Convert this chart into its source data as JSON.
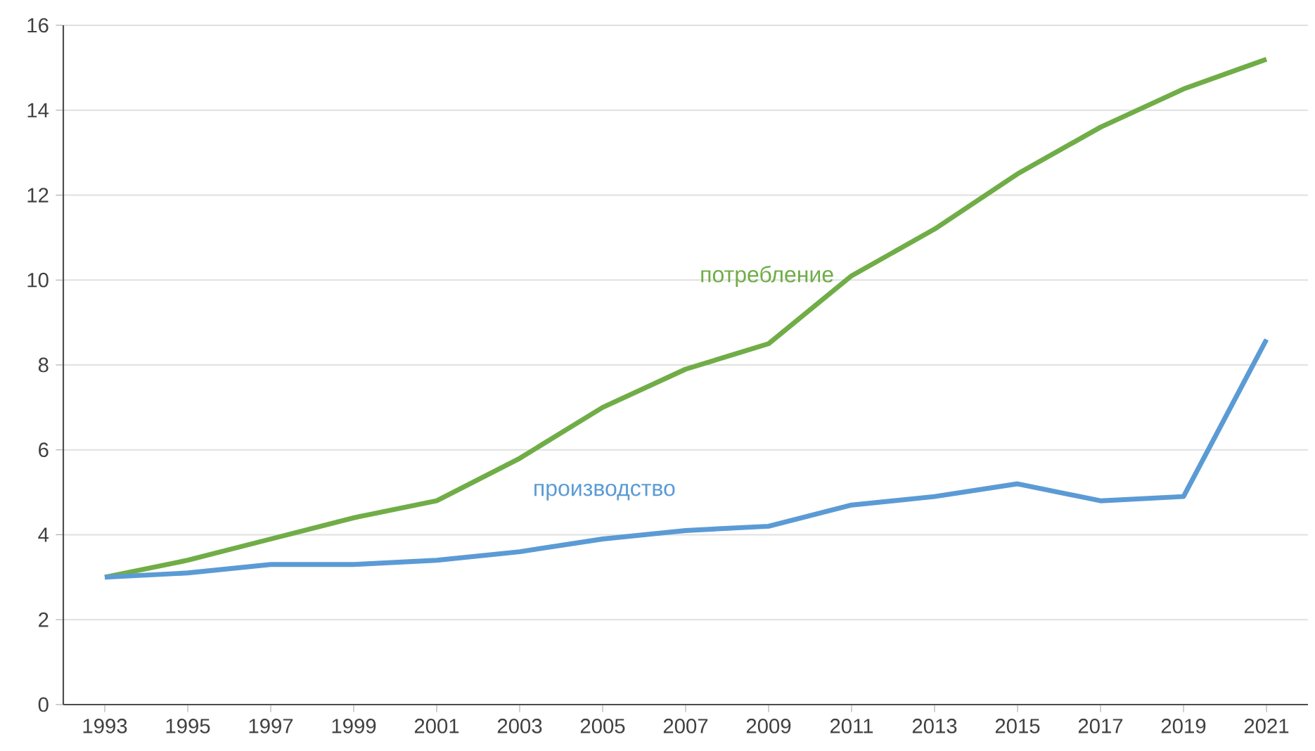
{
  "chart_data": {
    "type": "line",
    "categories": [
      "1993",
      "1995",
      "1997",
      "1999",
      "2001",
      "2003",
      "2005",
      "2007",
      "2009",
      "2011",
      "2013",
      "2015",
      "2017",
      "2019",
      "2021"
    ],
    "series": [
      {
        "name": "потребление",
        "color": "#70ad47",
        "values": [
          3.0,
          3.4,
          3.9,
          4.4,
          4.8,
          5.8,
          7.0,
          7.9,
          8.5,
          10.1,
          11.2,
          12.5,
          13.6,
          14.5,
          15.2
        ]
      },
      {
        "name": "производство",
        "color": "#5b9bd5",
        "values": [
          3.0,
          3.1,
          3.3,
          3.3,
          3.4,
          3.6,
          3.9,
          4.1,
          4.2,
          4.7,
          4.9,
          5.2,
          4.8,
          4.9,
          8.6
        ]
      }
    ],
    "ylim": [
      0,
      16
    ],
    "yticks": [
      0,
      2,
      4,
      6,
      8,
      10,
      12,
      14,
      16
    ],
    "grid": "y",
    "legend": false,
    "marker": "none",
    "line_style": "solid"
  }
}
